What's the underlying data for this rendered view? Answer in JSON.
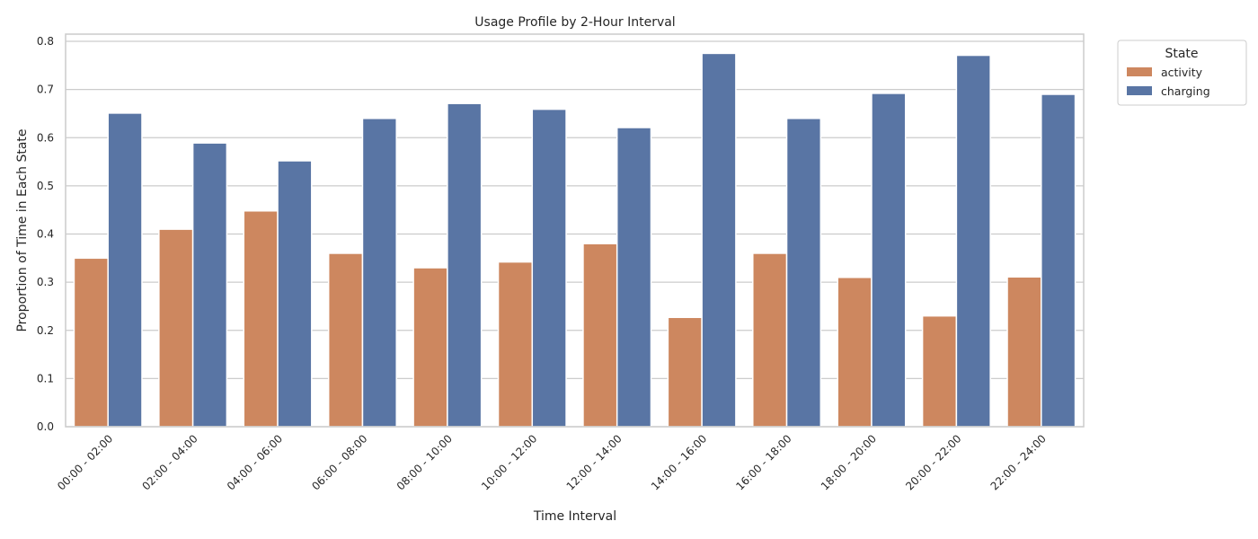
{
  "chart_data": {
    "type": "bar",
    "title": "Usage Profile by 2-Hour Interval",
    "xlabel": "Time Interval",
    "ylabel": "Proportion of Time in Each State",
    "ylim": [
      0,
      0.8
    ],
    "yticks": [
      "0.0",
      "0.1",
      "0.2",
      "0.3",
      "0.4",
      "0.5",
      "0.6",
      "0.7",
      "0.8"
    ],
    "grid": "horizontal",
    "legend": {
      "title": "State",
      "placement": "outside-top-right"
    },
    "categories": [
      "00:00 - 02:00",
      "02:00 - 04:00",
      "04:00 - 06:00",
      "06:00 - 08:00",
      "08:00 - 10:00",
      "10:00 - 12:00",
      "12:00 - 14:00",
      "14:00 - 16:00",
      "16:00 - 18:00",
      "18:00 - 20:00",
      "20:00 - 22:00",
      "22:00 - 24:00"
    ],
    "series": [
      {
        "name": "activity",
        "color": "#cd875f",
        "values": [
          0.35,
          0.41,
          0.448,
          0.36,
          0.33,
          0.342,
          0.38,
          0.227,
          0.36,
          0.31,
          0.23,
          0.311
        ]
      },
      {
        "name": "charging",
        "color": "#5975a4",
        "values": [
          0.651,
          0.589,
          0.552,
          0.64,
          0.671,
          0.659,
          0.621,
          0.775,
          0.64,
          0.692,
          0.771,
          0.69
        ]
      }
    ]
  }
}
